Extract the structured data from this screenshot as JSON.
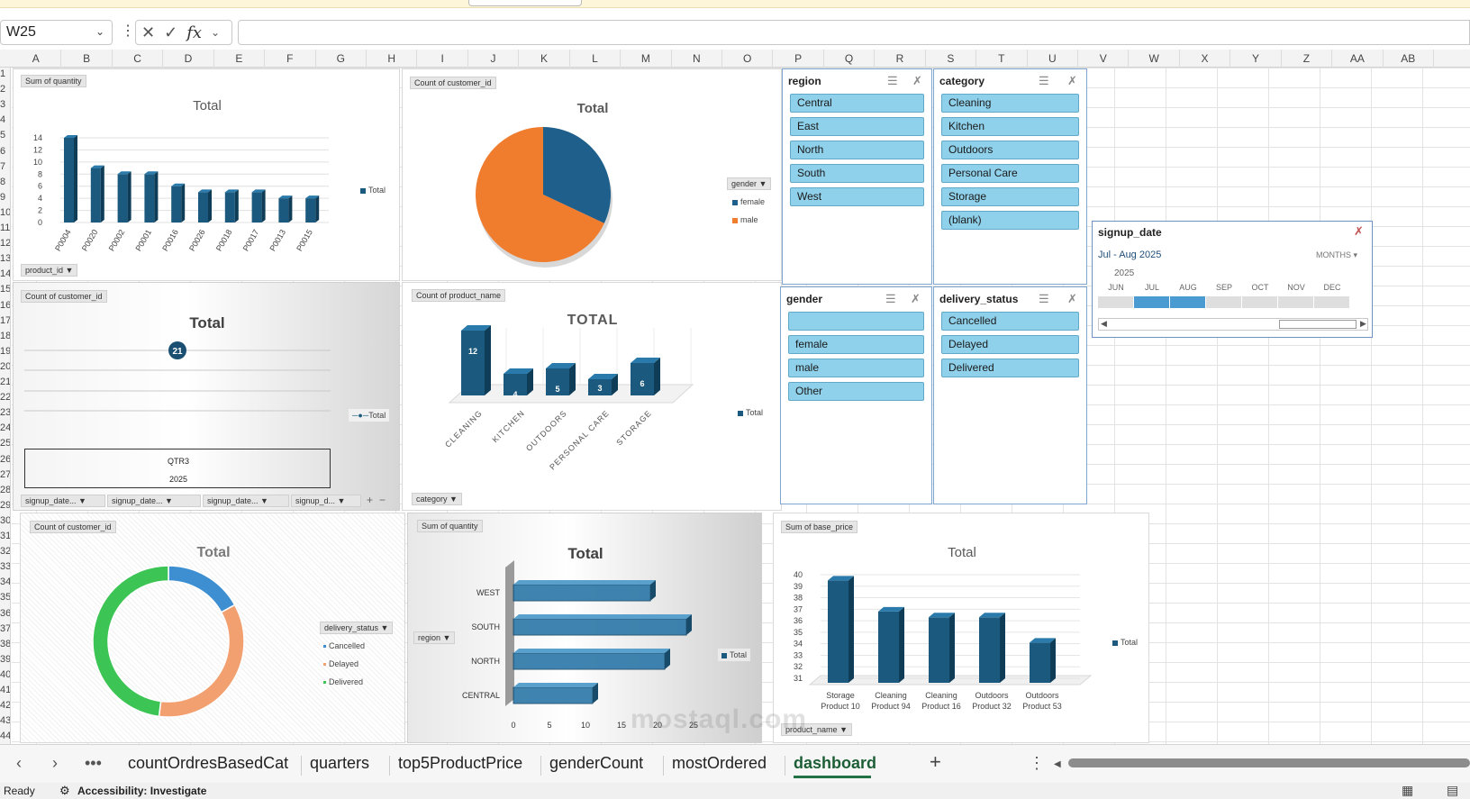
{
  "formula_bar": {
    "name_box": "W25",
    "fx_label": "fx",
    "formula_value": ""
  },
  "columns": [
    "A",
    "B",
    "C",
    "D",
    "E",
    "F",
    "G",
    "H",
    "I",
    "J",
    "K",
    "L",
    "M",
    "N",
    "O",
    "P",
    "Q",
    "R",
    "S",
    "T",
    "U",
    "V",
    "W",
    "X",
    "Y",
    "Z",
    "AA",
    "AB"
  ],
  "rows": [
    "1",
    "2",
    "3",
    "4",
    "5",
    "6",
    "7",
    "8",
    "9",
    "10",
    "11",
    "12",
    "13",
    "14",
    "15",
    "16",
    "17",
    "18",
    "19",
    "20",
    "21",
    "22",
    "23",
    "24",
    "25",
    "26",
    "27",
    "28",
    "29",
    "30",
    "31",
    "32",
    "33",
    "34",
    "35",
    "36",
    "37",
    "38",
    "39",
    "40",
    "41",
    "42",
    "43",
    "44"
  ],
  "chart1": {
    "field_label": "Sum of quantity",
    "title": "Total",
    "legend": "Total",
    "axis_field": "product_id",
    "chart_data": {
      "type": "bar",
      "title": "Total",
      "categories": [
        "P0004",
        "P0020",
        "P0002",
        "P0001",
        "P0016",
        "P0026",
        "P0018",
        "P0017",
        "P0013",
        "P0015"
      ],
      "values": [
        14,
        9,
        8,
        8,
        6,
        5,
        5,
        5,
        4,
        4
      ],
      "yticks": [
        "0",
        "2",
        "4",
        "6",
        "8",
        "10",
        "12",
        "14"
      ],
      "ylim": [
        0,
        14
      ],
      "legend": "Total"
    }
  },
  "chart2": {
    "field_label": "Count of customer_id",
    "title": "Total",
    "legend_field": "gender",
    "chart_data": {
      "type": "pie",
      "title": "Total",
      "labels": [
        "female",
        "male"
      ],
      "values": [
        32,
        68
      ],
      "colors": [
        "#1f5f8b",
        "#f07c2e"
      ]
    }
  },
  "chart3": {
    "field_label": "Count of customer_id",
    "title": "Total",
    "legend": "Total",
    "axis_groups": [
      "QTR3",
      "2025"
    ],
    "field_buttons": [
      "signup_date...",
      "signup_date...",
      "signup_date...",
      "signup_d..."
    ],
    "chart_data": {
      "type": "line",
      "title": "Total",
      "categories": [
        "QTR3 2025"
      ],
      "values": [
        21
      ],
      "data_labels": [
        "21"
      ],
      "legend": "Total"
    }
  },
  "chart4": {
    "field_label": "Count of product_name",
    "title": "TOTAL",
    "legend": "Total",
    "axis_field": "category",
    "chart_data": {
      "type": "bar",
      "title": "TOTAL",
      "categories": [
        "CLEANING",
        "KITCHEN",
        "OUTDOORS",
        "PERSONAL CARE",
        "STORAGE"
      ],
      "values": [
        12,
        4,
        5,
        3,
        6
      ],
      "data_labels": [
        "12",
        "4",
        "5",
        "3",
        "6"
      ],
      "legend": "Total"
    }
  },
  "chart5": {
    "field_label": "Count of customer_id",
    "title": "Total",
    "legend_field": "delivery_status",
    "chart_data": {
      "type": "pie",
      "title": "Total",
      "labels": [
        "Cancelled",
        "Delayed",
        "Delivered"
      ],
      "values": [
        17,
        35,
        48
      ],
      "colors": [
        "#3d8fd1",
        "#f2a070",
        "#3cc454"
      ]
    }
  },
  "chart6": {
    "field_label": "Sum of quantity",
    "title": "Total",
    "legend": "Total",
    "axis_field": "region",
    "chart_data": {
      "type": "bar",
      "title": "Total",
      "categories": [
        "WEST",
        "SOUTH",
        "NORTH",
        "CENTRAL"
      ],
      "values": [
        19,
        24,
        21,
        11
      ],
      "xticks": [
        "0",
        "5",
        "10",
        "15",
        "20",
        "25"
      ],
      "xlim": [
        0,
        25
      ],
      "legend": "Total"
    }
  },
  "chart7": {
    "field_label": "Sum of base_price",
    "title": "Total",
    "legend": "Total",
    "axis_field": "product_name",
    "chart_data": {
      "type": "bar",
      "title": "Total",
      "categories": [
        [
          "Storage",
          "Product 10"
        ],
        [
          "Cleaning",
          "Product 94"
        ],
        [
          "Cleaning",
          "Product 16"
        ],
        [
          "Outdoors",
          "Product 32"
        ],
        [
          "Outdoors",
          "Product 53"
        ]
      ],
      "values": [
        39.5,
        36.8,
        36.3,
        36.3,
        34.1
      ],
      "yticks": [
        "31",
        "32",
        "33",
        "34",
        "35",
        "36",
        "37",
        "38",
        "39",
        "40"
      ],
      "ylim": [
        31,
        40
      ],
      "legend": "Total"
    }
  },
  "slicers": {
    "region": {
      "title": "region",
      "items": [
        "Central",
        "East",
        "North",
        "South",
        "West"
      ]
    },
    "category": {
      "title": "category",
      "items": [
        "Cleaning",
        "Kitchen",
        "Outdoors",
        "Personal Care",
        "Storage",
        "(blank)"
      ]
    },
    "gender": {
      "title": "gender",
      "items": [
        "",
        "female",
        "male",
        "Other"
      ]
    },
    "delivery_status": {
      "title": "delivery_status",
      "items": [
        "Cancelled",
        "Delayed",
        "Delivered"
      ]
    }
  },
  "timeline": {
    "title": "signup_date",
    "range": "Jul - Aug 2025",
    "level": "MONTHS",
    "year": "2025",
    "months": [
      "JUN",
      "JUL",
      "AUG",
      "SEP",
      "OCT",
      "NOV",
      "DEC"
    ],
    "selected": [
      "JUL",
      "AUG"
    ]
  },
  "sheet_tabs": [
    "countOrdresBasedCat",
    "quarters",
    "top5ProductPrice",
    "genderCount",
    "mostOrdered",
    "dashboard"
  ],
  "active_tab": "dashboard",
  "status": {
    "ready": "Ready",
    "accessibility": "Accessibility: Investigate"
  },
  "watermark": "mostaql.com",
  "colors": {
    "bar": "#1b5a7e",
    "slicer_item": "#8fd0ea",
    "accent_tab": "#217346"
  }
}
